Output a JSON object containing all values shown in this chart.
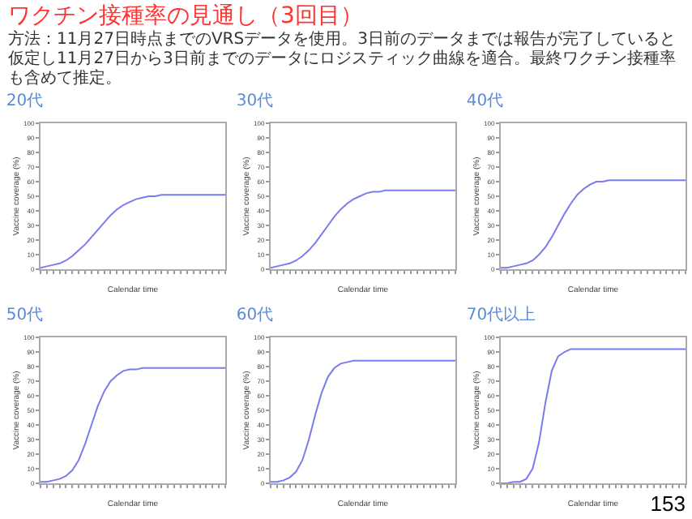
{
  "chart_data": [
    {
      "type": "line",
      "title": "20代",
      "xlabel": "Calendar time",
      "ylabel": "Vaccine coverage (%)",
      "categories": [
        null,
        null,
        null,
        null,
        null,
        null,
        null,
        null,
        null,
        null,
        null,
        null,
        null,
        null,
        null,
        null,
        null,
        null,
        null,
        null,
        null,
        null,
        null,
        null,
        null,
        null,
        null,
        null,
        null,
        null
      ],
      "ylim": [
        0,
        100
      ],
      "yticks": [
        0,
        10,
        20,
        30,
        40,
        50,
        60,
        70,
        80,
        90,
        100
      ],
      "tick_labels": "y",
      "grid": false,
      "annotations": [
        "ワクチン接種率の見通し（3回目）",
        "方法：11月27日時点までのVRSデータを使用。3日前のデータまでは報告が完了していると仮定し11月27日から3日前までのデータにロジスティック曲線を適合。最終ワクチン接種率も含めて推定。",
        "153"
      ],
      "series": [
        {
          "color": "#7b7bf0",
          "values": [
            1,
            2,
            3,
            4,
            6,
            9,
            13,
            17,
            22,
            27,
            32,
            37,
            41,
            44,
            46,
            48,
            49,
            50,
            50,
            51,
            51,
            51,
            51,
            51,
            51,
            51,
            51,
            51,
            51,
            51
          ]
        }
      ]
    },
    {
      "type": "line",
      "title": "30代",
      "xlabel": "Calendar time",
      "ylabel": "Vaccine coverage (%)",
      "categories": [
        null,
        null,
        null,
        null,
        null,
        null,
        null,
        null,
        null,
        null,
        null,
        null,
        null,
        null,
        null,
        null,
        null,
        null,
        null,
        null,
        null,
        null,
        null,
        null,
        null,
        null,
        null,
        null,
        null,
        null
      ],
      "ylim": [
        0,
        100
      ],
      "yticks": [
        0,
        10,
        20,
        30,
        40,
        50,
        60,
        70,
        80,
        90,
        100
      ],
      "tick_labels": "y",
      "grid": false,
      "series": [
        {
          "color": "#7b7bf0",
          "values": [
            1,
            2,
            3,
            4,
            6,
            9,
            13,
            18,
            24,
            30,
            36,
            41,
            45,
            48,
            50,
            52,
            53,
            53,
            54,
            54,
            54,
            54,
            54,
            54,
            54,
            54,
            54,
            54,
            54,
            54
          ]
        }
      ]
    },
    {
      "type": "line",
      "title": "40代",
      "xlabel": "Calendar time",
      "ylabel": "Vaccine coverage (%)",
      "categories": [
        null,
        null,
        null,
        null,
        null,
        null,
        null,
        null,
        null,
        null,
        null,
        null,
        null,
        null,
        null,
        null,
        null,
        null,
        null,
        null,
        null,
        null,
        null,
        null,
        null,
        null,
        null,
        null,
        null,
        null
      ],
      "ylim": [
        0,
        100
      ],
      "yticks": [
        0,
        10,
        20,
        30,
        40,
        50,
        60,
        70,
        80,
        90,
        100
      ],
      "tick_labels": "y",
      "grid": false,
      "series": [
        {
          "color": "#7b7bf0",
          "values": [
            1,
            1,
            2,
            3,
            4,
            6,
            10,
            15,
            22,
            30,
            38,
            45,
            51,
            55,
            58,
            60,
            60,
            61,
            61,
            61,
            61,
            61,
            61,
            61,
            61,
            61,
            61,
            61,
            61,
            61
          ]
        }
      ]
    },
    {
      "type": "line",
      "title": "50代",
      "xlabel": "Calendar time",
      "ylabel": "Vaccine coverage (%)",
      "categories": [
        null,
        null,
        null,
        null,
        null,
        null,
        null,
        null,
        null,
        null,
        null,
        null,
        null,
        null,
        null,
        null,
        null,
        null,
        null,
        null,
        null,
        null,
        null,
        null,
        null,
        null,
        null,
        null,
        null,
        null
      ],
      "ylim": [
        0,
        100
      ],
      "yticks": [
        0,
        10,
        20,
        30,
        40,
        50,
        60,
        70,
        80,
        90,
        100
      ],
      "tick_labels": "y",
      "grid": false,
      "series": [
        {
          "color": "#7b7bf0",
          "values": [
            1,
            1,
            2,
            3,
            5,
            9,
            16,
            27,
            40,
            53,
            63,
            70,
            74,
            77,
            78,
            78,
            79,
            79,
            79,
            79,
            79,
            79,
            79,
            79,
            79,
            79,
            79,
            79,
            79,
            79
          ]
        }
      ]
    },
    {
      "type": "line",
      "title": "60代",
      "xlabel": "Calendar time",
      "ylabel": "Vaccine coverage (%)",
      "categories": [
        null,
        null,
        null,
        null,
        null,
        null,
        null,
        null,
        null,
        null,
        null,
        null,
        null,
        null,
        null,
        null,
        null,
        null,
        null,
        null,
        null,
        null,
        null,
        null,
        null,
        null,
        null,
        null,
        null,
        null
      ],
      "ylim": [
        0,
        100
      ],
      "yticks": [
        0,
        10,
        20,
        30,
        40,
        50,
        60,
        70,
        80,
        90,
        100
      ],
      "tick_labels": "y",
      "grid": false,
      "series": [
        {
          "color": "#7b7bf0",
          "values": [
            1,
            1,
            2,
            4,
            8,
            16,
            30,
            47,
            62,
            73,
            79,
            82,
            83,
            84,
            84,
            84,
            84,
            84,
            84,
            84,
            84,
            84,
            84,
            84,
            84,
            84,
            84,
            84,
            84,
            84
          ]
        }
      ]
    },
    {
      "type": "line",
      "title": "70代以上",
      "xlabel": "Calendar time",
      "ylabel": "Vaccine coverage (%)",
      "categories": [
        null,
        null,
        null,
        null,
        null,
        null,
        null,
        null,
        null,
        null,
        null,
        null,
        null,
        null,
        null,
        null,
        null,
        null,
        null,
        null,
        null,
        null,
        null,
        null,
        null,
        null,
        null,
        null,
        null,
        null
      ],
      "ylim": [
        0,
        100
      ],
      "yticks": [
        0,
        10,
        20,
        30,
        40,
        50,
        60,
        70,
        80,
        90,
        100
      ],
      "tick_labels": "y",
      "grid": false,
      "series": [
        {
          "color": "#7b7bf0",
          "values": [
            0,
            0,
            1,
            1,
            3,
            10,
            28,
            55,
            77,
            87,
            90,
            92,
            92,
            92,
            92,
            92,
            92,
            92,
            92,
            92,
            92,
            92,
            92,
            92,
            92,
            92,
            92,
            92,
            92,
            92
          ]
        }
      ]
    }
  ]
}
